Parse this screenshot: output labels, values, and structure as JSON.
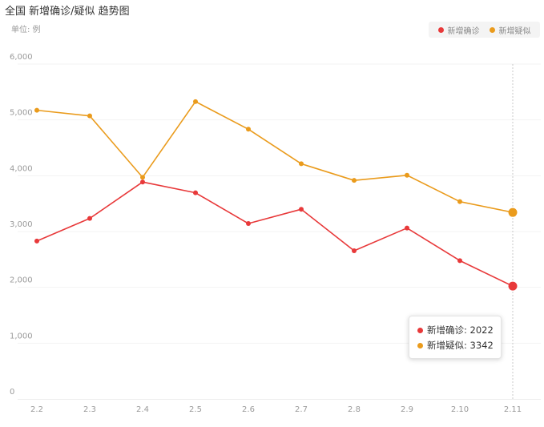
{
  "title": "全国 新增确诊/疑似 趋势图",
  "unit_label": "单位: 例",
  "colors": {
    "confirmed": "#e8393a",
    "suspected": "#ea9b1c"
  },
  "legend": [
    {
      "label": "新增确诊"
    },
    {
      "label": "新增疑似"
    }
  ],
  "tooltip": {
    "confirmed": "新增确诊: 2022",
    "suspected": "新增疑似: 3342"
  },
  "chart_data": {
    "type": "line",
    "x": [
      "2.2",
      "2.3",
      "2.4",
      "2.5",
      "2.6",
      "2.7",
      "2.8",
      "2.9",
      "2.10",
      "2.11"
    ],
    "y_ticks": [
      "0",
      "1,000",
      "2,000",
      "3,000",
      "4,000",
      "5,000",
      "6,000"
    ],
    "ylim": [
      0,
      6000
    ],
    "series": [
      {
        "name": "新增确诊",
        "values": [
          2829,
          3235,
          3887,
          3694,
          3143,
          3399,
          2656,
          3062,
          2478,
          2022
        ]
      },
      {
        "name": "新增疑似",
        "values": [
          5173,
          5072,
          3971,
          5328,
          4833,
          4214,
          3916,
          4008,
          3536,
          3342
        ]
      }
    ],
    "highlight_index": 9
  }
}
